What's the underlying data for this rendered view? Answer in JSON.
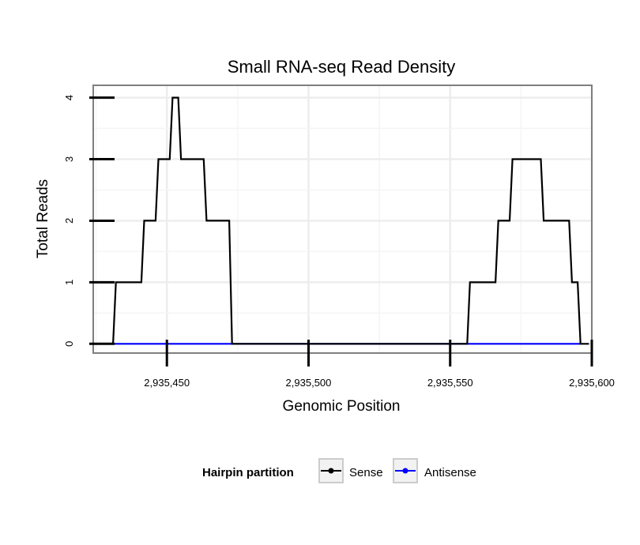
{
  "chart_data": {
    "type": "line",
    "title": "Small RNA-seq Read Density",
    "xlabel": "Genomic Position",
    "ylabel": "Total Reads",
    "xlim": [
      2935424,
      2935600
    ],
    "ylim": [
      -0.15,
      4.2
    ],
    "x_ticks": [
      2935450,
      2935500,
      2935550,
      2935600
    ],
    "x_tick_labels": [
      "2,935,450",
      "2,935,500",
      "2,935,550",
      "2,935,600"
    ],
    "y_ticks": [
      0,
      1,
      2,
      3,
      4
    ],
    "y_tick_labels": [
      "0",
      "1",
      "2",
      "3",
      "4"
    ],
    "grid": true,
    "series": [
      {
        "name": "Sense",
        "color": "#000000",
        "x": [
          2935428,
          2935431,
          2935432,
          2935441,
          2935442,
          2935446,
          2935447,
          2935451,
          2935452,
          2935454,
          2935455,
          2935457,
          2935458,
          2935463,
          2935464,
          2935472,
          2935473,
          2935556,
          2935557,
          2935566,
          2935567,
          2935571,
          2935572,
          2935582,
          2935583,
          2935592,
          2935593,
          2935595,
          2935596,
          2935599
        ],
        "y": [
          0,
          0,
          1,
          1,
          2,
          2,
          3,
          3,
          4,
          4,
          3,
          3,
          3,
          3,
          2,
          2,
          0,
          0,
          1,
          1,
          2,
          2,
          3,
          3,
          2,
          2,
          1,
          1,
          0,
          0
        ]
      },
      {
        "name": "Antisense",
        "color": "#0000ff",
        "x": [
          2935431,
          2935473,
          2935556,
          2935596
        ],
        "y": [
          0,
          0,
          0,
          0
        ]
      }
    ],
    "legend": {
      "title": "Hairpin partition",
      "position": "bottom",
      "entries": [
        "Sense",
        "Antisense"
      ]
    }
  }
}
